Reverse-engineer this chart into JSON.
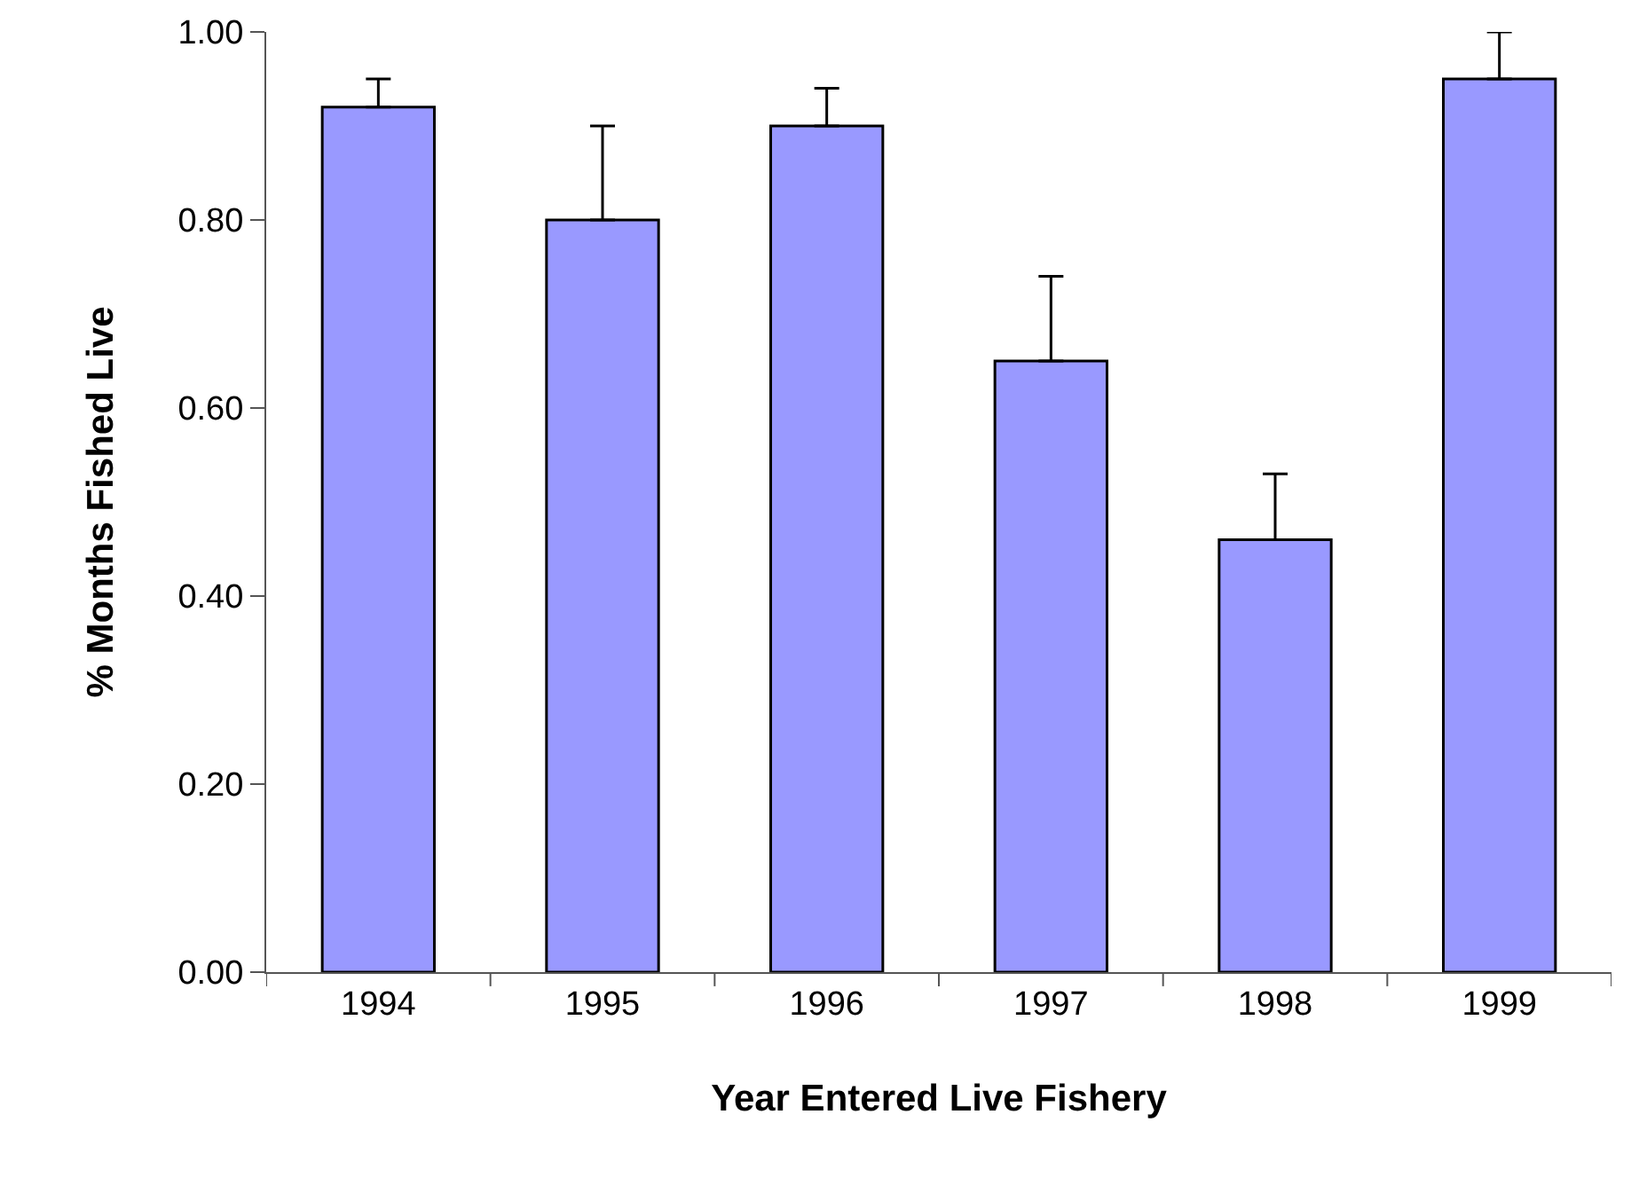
{
  "chart_data": {
    "type": "bar",
    "xlabel": "Year Entered Live Fishery",
    "ylabel": "% Months Fished Live",
    "categories": [
      "1994",
      "1995",
      "1996",
      "1997",
      "1998",
      "1999"
    ],
    "values": [
      0.92,
      0.8,
      0.9,
      0.65,
      0.46,
      0.95
    ],
    "errors": [
      [
        0.92,
        0.95
      ],
      [
        0.8,
        0.9
      ],
      [
        0.9,
        0.94
      ],
      [
        0.65,
        0.74
      ],
      [
        0.46,
        0.53
      ],
      [
        0.95,
        1.0
      ]
    ],
    "color": "#9999ff",
    "ylim": [
      0,
      1
    ],
    "yticks": [
      {
        "value": 0,
        "label": "0.00"
      },
      {
        "value": 0.2,
        "label": "0.20"
      },
      {
        "value": 0.4,
        "label": "0.40"
      },
      {
        "value": 0.6,
        "label": "0.60"
      },
      {
        "value": 0.8,
        "label": "0.80"
      },
      {
        "value": 1,
        "label": "1.00"
      }
    ],
    "grid": false
  }
}
